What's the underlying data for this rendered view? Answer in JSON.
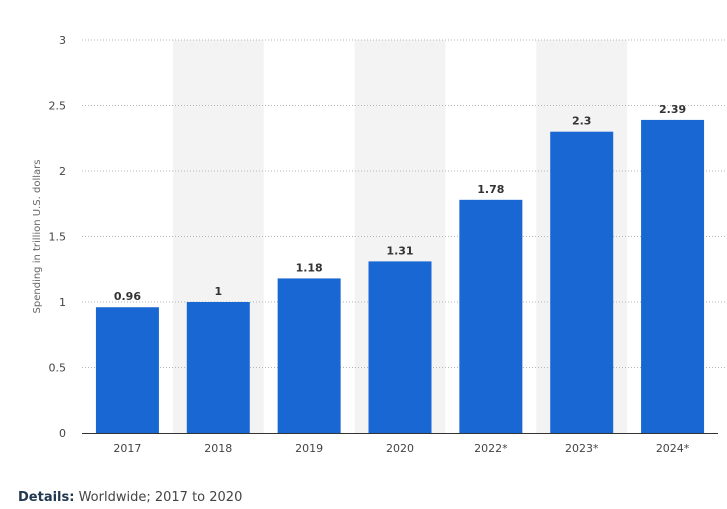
{
  "chart_data": {
    "type": "bar",
    "categories": [
      "2017",
      "2018",
      "2019",
      "2020",
      "2022*",
      "2023*",
      "2024*"
    ],
    "values": [
      0.96,
      1,
      1.18,
      1.31,
      1.78,
      2.3,
      2.39
    ],
    "data_labels": [
      "0.96",
      "1",
      "1.18",
      "1.31",
      "1.78",
      "2.3",
      "2.39"
    ],
    "title": "",
    "xlabel": "",
    "ylabel": "Spending in trillion U.S. dollars",
    "ylim": [
      0,
      3
    ],
    "yticks": [
      "0",
      "0.5",
      "1",
      "1.5",
      "2",
      "2.5",
      "3"
    ],
    "grid": true,
    "bar_color": "#1967d2",
    "alt_band_color": "#f3f3f3"
  },
  "details": {
    "label": "Details:",
    "text": "Worldwide; 2017 to 2020"
  }
}
